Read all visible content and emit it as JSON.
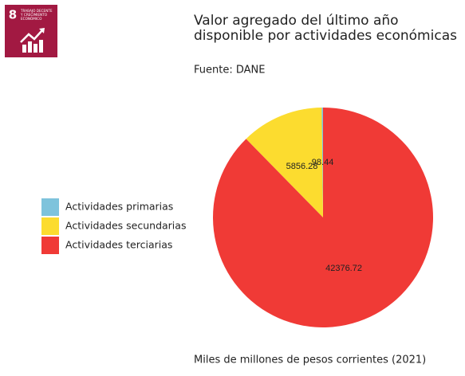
{
  "logo": {
    "number": "8",
    "lines": [
      "TRABAJO DECENTE",
      "Y CRECIMIENTO",
      "ECONÓMICO"
    ]
  },
  "chart_data": {
    "type": "pie",
    "title": [
      "Valor agregado del último año",
      "disponible por actividades económicas"
    ],
    "subtitle": "Fuente: DANE",
    "caption": "Miles de millones de pesos corrientes (2021)",
    "categories": [
      "Actividades primarias",
      "Actividades secundarias",
      "Actividades terciarias"
    ],
    "values": [
      98.44,
      5856.28,
      42376.72
    ],
    "colors": [
      "#7ec3dc",
      "#fcdc2f",
      "#f03a36"
    ],
    "legend": "left"
  }
}
